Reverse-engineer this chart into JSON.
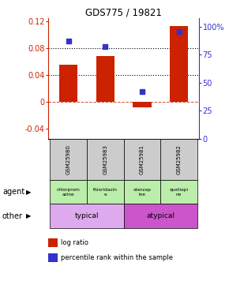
{
  "title": "GDS775 / 19821",
  "samples": [
    "GSM25980",
    "GSM25983",
    "GSM25981",
    "GSM25982"
  ],
  "log_ratio": [
    0.055,
    0.068,
    -0.008,
    0.113
  ],
  "percentile": [
    0.87,
    0.82,
    0.42,
    0.96
  ],
  "ylim_left": [
    -0.055,
    0.125
  ],
  "ylim_right": [
    0,
    1.08
  ],
  "yticks_left": [
    -0.04,
    0,
    0.04,
    0.08,
    0.12
  ],
  "ytick_labels_left": [
    "-0.04",
    "0",
    "0.04",
    "0.08",
    "0.12"
  ],
  "yticks_right": [
    0,
    0.25,
    0.5,
    0.75,
    1.0
  ],
  "ytick_labels_right": [
    "0",
    "25",
    "50",
    "75",
    "100%"
  ],
  "hlines": [
    0.04,
    0.08
  ],
  "bar_color": "#cc2200",
  "dot_color": "#3333cc",
  "agent_labels": [
    "chlorprom\nazine",
    "thioridazin\ne",
    "olanzap\nine",
    "quetiapi\nne"
  ],
  "typical_color": "#bbeeaa",
  "atypical_color": "#cc55cc",
  "row_gsm_bg": "#cccccc",
  "left_axis_color": "#cc2200",
  "right_axis_color": "#3333cc"
}
